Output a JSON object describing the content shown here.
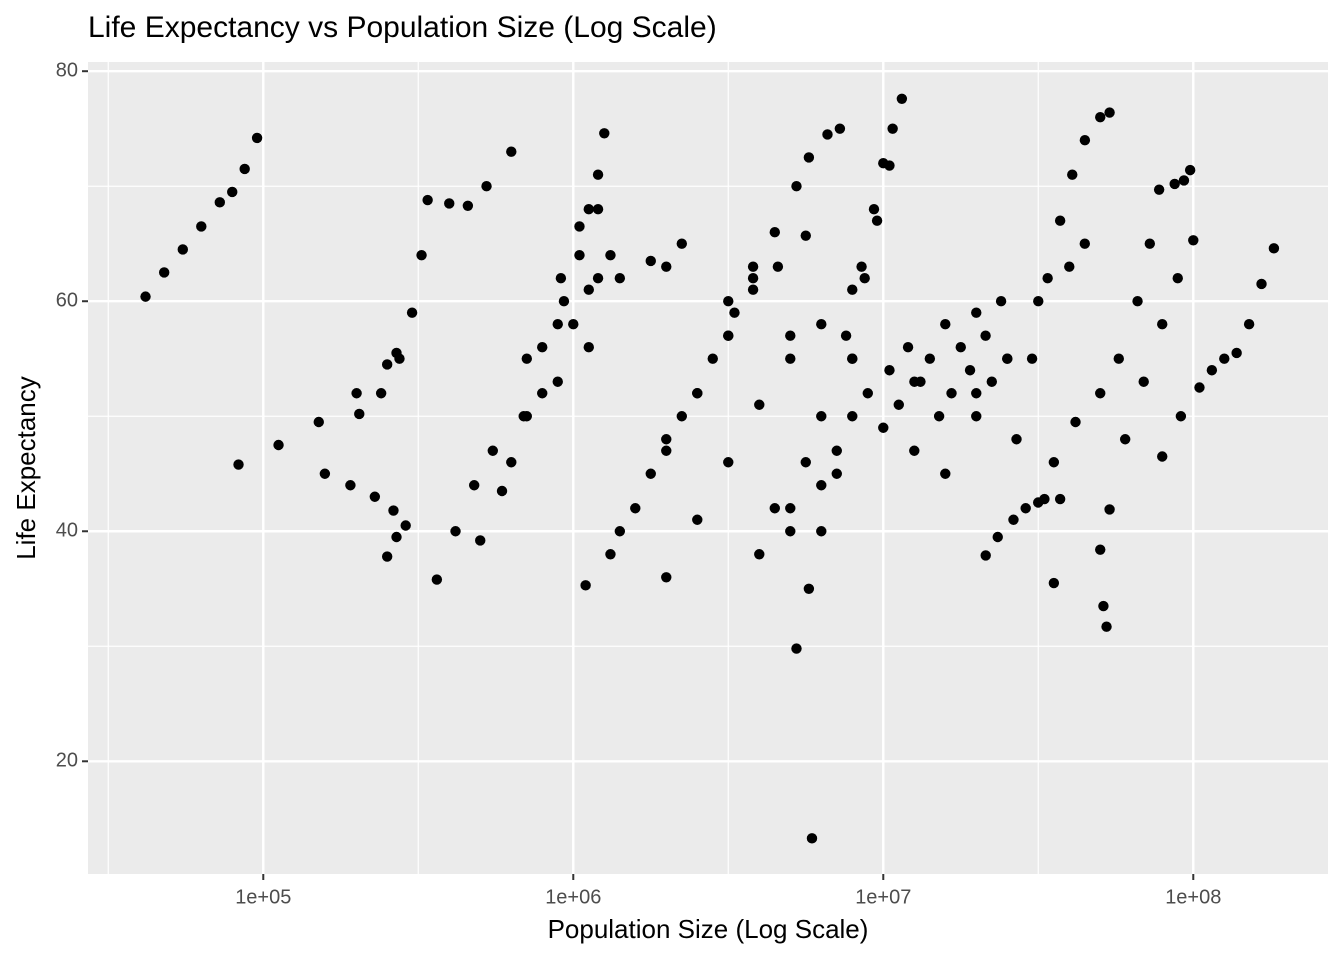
{
  "chart_data": {
    "type": "scatter",
    "title": "Life Expectancy vs Population Size (Log Scale)",
    "x_label": "Population Size (Log Scale)",
    "y_label": "Life Expectancy",
    "x_log": true,
    "grid": true,
    "color": "#000000",
    "xlim": [
      27200,
      272000000
    ],
    "ylim": [
      10.2,
      80.8
    ],
    "xticks": [
      {
        "value": 100000,
        "label": "1e+05"
      },
      {
        "value": 1000000,
        "label": "1e+06"
      },
      {
        "value": 10000000,
        "label": "1e+07"
      },
      {
        "value": 100000000,
        "label": "1e+08"
      }
    ],
    "xminor": [
      31623,
      316228,
      3162278,
      31622777
    ],
    "yticks": [
      20,
      40,
      60,
      80
    ],
    "yminor": [
      30,
      50,
      70
    ],
    "x": [
      41700,
      47900,
      55000,
      63100,
      72400,
      79400,
      87100,
      95500,
      83200,
      112000,
      151000,
      200000,
      251000,
      269000,
      204000,
      240000,
      275000,
      302000,
      324000,
      339000,
      398000,
      457000,
      525000,
      631000,
      158000,
      191000,
      229000,
      263000,
      288000,
      251000,
      269000,
      363000,
      417000,
      479000,
      550000,
      708000,
      891000,
      1122000,
      501000,
      631000,
      794000,
      1000000,
      1202000,
      1318000,
      933000,
      1047000,
      1122000,
      1202000,
      1259000,
      589000,
      692000,
      794000,
      912000,
      1047000,
      1202000,
      1096000,
      1318000,
      1585000,
      1995000,
      2512000,
      3162000,
      3802000,
      4571000,
      5623000,
      5012000,
      6310000,
      7586000,
      8511000,
      9333000,
      10000000,
      10720000,
      11480000,
      1995000,
      2512000,
      3162000,
      3802000,
      4467000,
      5248000,
      5754000,
      6607000,
      7244000,
      5248000,
      5754000,
      6310000,
      7079000,
      7943000,
      8710000,
      9550000,
      10470000,
      26900000,
      30200000,
      33900000,
      37200000,
      40700000,
      44700000,
      50100000,
      53700000,
      31600000,
      35500000,
      41700000,
      50100000,
      57500000,
      66100000,
      72400000,
      77600000,
      87100000,
      93300000,
      97700000,
      60300000,
      69200000,
      79400000,
      89100000,
      100000000,
      79400000,
      91200000,
      104700000,
      114800000,
      125900000,
      138000000,
      151400000,
      166000000,
      182000000,
      21400000,
      23400000,
      26300000,
      28800000,
      33100000,
      37200000,
      35500000,
      51300000,
      52500000,
      50100000,
      53700000,
      5888000,
      1995000,
      3162000,
      5012000,
      7943000,
      12600000,
      19950000,
      7943000,
      8913000,
      10000000,
      10470000,
      11220000,
      12020000,
      12590000,
      13180000,
      14130000,
      15140000,
      15850000,
      16600000,
      17780000,
      19050000,
      19950000,
      21380000,
      22390000,
      23990000,
      25120000,
      7079000,
      6310000,
      5623000,
      5012000,
      4467000,
      3981000,
      1995000,
      2512000,
      3162000,
      3981000,
      5012000,
      6310000,
      7943000,
      1413000,
      1778000,
      2239000,
      2818000,
      3311000,
      3802000,
      15850000,
      19950000,
      25120000,
      31620000,
      39810000,
      44670000,
      708000,
      891000,
      1122000,
      1413000,
      1778000,
      2239000
    ],
    "values": [
      60.4,
      62.5,
      64.5,
      66.5,
      68.6,
      69.5,
      71.5,
      74.2,
      45.8,
      47.5,
      49.5,
      52,
      54.5,
      55.5,
      50.2,
      52,
      55,
      59,
      64,
      68.8,
      68.5,
      68.3,
      70,
      73,
      45,
      44,
      43,
      41.8,
      40.5,
      37.8,
      39.5,
      35.8,
      40,
      44,
      47,
      50,
      53,
      56,
      39.2,
      46,
      52,
      58,
      62,
      64,
      60,
      64,
      68,
      71,
      74.6,
      43.5,
      50,
      56,
      62,
      66.5,
      68,
      35.3,
      38,
      42,
      47,
      52,
      57,
      61,
      63,
      65.7,
      42,
      50,
      57,
      63,
      68,
      72,
      75,
      77.6,
      48,
      52,
      57,
      62,
      66,
      70,
      72.5,
      74.5,
      75,
      29.8,
      35,
      40,
      47,
      55,
      62,
      67,
      71.8,
      48,
      55,
      62,
      67,
      71,
      74,
      76,
      76.4,
      42.5,
      46,
      49.5,
      52,
      55,
      60,
      65,
      69.7,
      70.2,
      70.5,
      71.4,
      48,
      53,
      58,
      62,
      65.3,
      46.5,
      50,
      52.5,
      54,
      55,
      55.5,
      58,
      61.5,
      64.6,
      37.9,
      39.5,
      41,
      42,
      42.8,
      42.8,
      35.5,
      33.5,
      31.7,
      38.4,
      41.9,
      13.3,
      63,
      60,
      57,
      55,
      53,
      52,
      50,
      52,
      49,
      54,
      51,
      56,
      47,
      53,
      55,
      50,
      58,
      52,
      56,
      54,
      59,
      57,
      53,
      60,
      55,
      45,
      44,
      46,
      40,
      42,
      38,
      36,
      41,
      46,
      51,
      55,
      58,
      61,
      40,
      45,
      50,
      55,
      59,
      63,
      45,
      50,
      55,
      60,
      63,
      65,
      55,
      58,
      61,
      62,
      63.5,
      65
    ]
  }
}
